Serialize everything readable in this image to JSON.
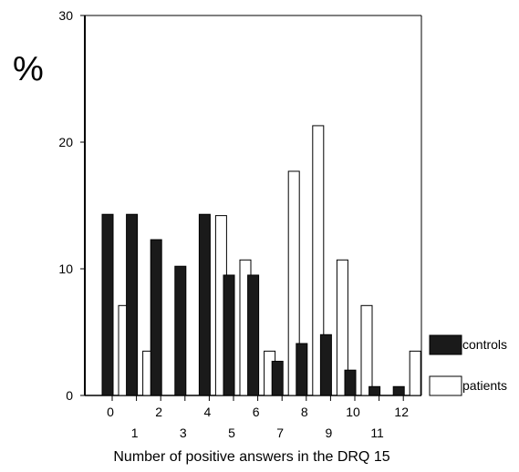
{
  "chart_data": {
    "type": "bar",
    "title": "",
    "ylabel": "%",
    "xlabel": "Number of positive answers in the DRQ 15",
    "ylim": [
      0,
      30
    ],
    "yticks": [
      0,
      10,
      20,
      30
    ],
    "categories": [
      "0",
      "1",
      "2",
      "3",
      "4",
      "5",
      "6",
      "7",
      "8",
      "9",
      "10",
      "11",
      "12"
    ],
    "series": [
      {
        "name": "controls",
        "color": "#1a1a1a",
        "values": [
          14.3,
          14.3,
          12.3,
          10.2,
          14.3,
          9.5,
          9.5,
          2.7,
          4.1,
          4.8,
          2.0,
          0.7,
          0.7
        ]
      },
      {
        "name": "patients",
        "color": "#ffffff",
        "values": [
          7.1,
          3.5,
          0,
          0,
          14.2,
          10.7,
          3.5,
          17.7,
          21.3,
          10.7,
          7.1,
          0,
          3.5
        ]
      }
    ],
    "legend_position": "right"
  }
}
